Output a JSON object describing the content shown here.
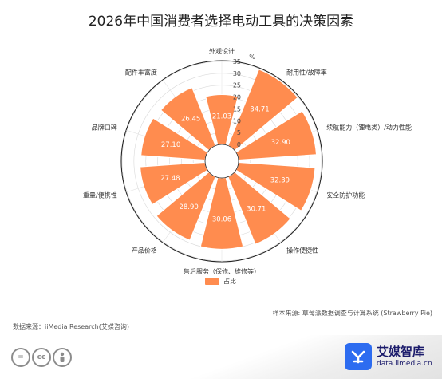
{
  "chart_data": {
    "type": "polar-bar",
    "title": "2026年中国消费者选择电动工具的决策因素",
    "radial_unit": "%",
    "radial_ticks": [
      "0",
      "5",
      "10",
      "15",
      "20",
      "25",
      "30",
      "35"
    ],
    "rlim": [
      0,
      35
    ],
    "grid": true,
    "legend_position": "bottom",
    "series": [
      {
        "name": "占比",
        "color": "#FF8C4F",
        "categories": [
          "外观设计",
          "耐用性/故障率",
          "续航能力（锂电类）/动力性能",
          "安全防护功能",
          "操作便捷性",
          "售后服务（保修、维修等）",
          "产品价格",
          "重量/便携性",
          "品牌口碑",
          "配件丰富度"
        ],
        "values": [
          21.03,
          34.71,
          32.9,
          32.39,
          30.71,
          30.06,
          28.9,
          27.48,
          27.1,
          26.45
        ],
        "value_labels": [
          "21.03",
          "34.71",
          "32.90",
          "32.39",
          "30.71",
          "30.06",
          "28.90",
          "27.48",
          "27.10",
          "26.45"
        ]
      }
    ]
  },
  "footer": {
    "sample_note": "样本来源: 草莓派数据调查与计算系统 (Strawberry Pie)",
    "data_source": "数据来源：iiMedia Research(艾媒咨询)",
    "brand_name": "艾媒智库",
    "brand_url": "data.iimedia.cn",
    "license_badges": [
      "=",
      "cc",
      "person"
    ]
  }
}
